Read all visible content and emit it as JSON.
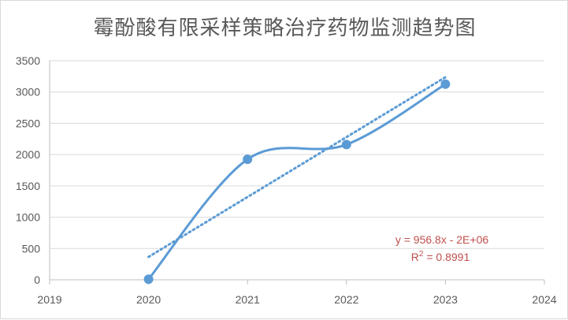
{
  "chart_data": {
    "type": "line",
    "title": "霉酚酸有限采样策略治疗药物监测趋势图",
    "xlabel": "",
    "ylabel": "",
    "xlim": [
      2019,
      2024
    ],
    "ylim": [
      0,
      3500
    ],
    "x_ticks": [
      "2019",
      "2020",
      "2021",
      "2022",
      "2023",
      "2024"
    ],
    "y_ticks": [
      "0",
      "500",
      "1000",
      "1500",
      "2000",
      "2500",
      "3000",
      "3500"
    ],
    "grid": "horizontal",
    "smoothed": true,
    "series": [
      {
        "x": [
          2020,
          2021,
          2022,
          2023
        ],
        "values": [
          10,
          1925,
          2160,
          3125
        ],
        "color": "#5b9bd5"
      }
    ],
    "trendline": {
      "type": "linear",
      "slope": 956.8,
      "intercept": -1932370,
      "equation": "y = 956.8x - 2E+06",
      "r2_prefix": "R",
      "r2_sup": "2",
      "r2_value": " = 0.8991",
      "color": "#5b9bd5",
      "label_color": "#c0504d"
    }
  }
}
